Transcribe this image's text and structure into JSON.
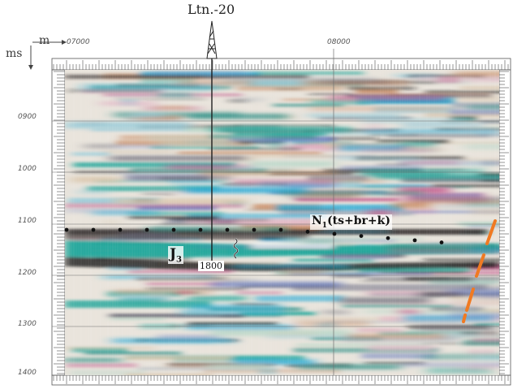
{
  "axis": {
    "distance_unit": "m",
    "time_unit": "ms",
    "trace_labels": [
      "07000",
      "08000"
    ],
    "time_labels": [
      "0900",
      "1000",
      "1100",
      "1200",
      "1300",
      "1400"
    ]
  },
  "well": {
    "name": "Ltn.-20",
    "depth_label": "1800"
  },
  "horizons": {
    "upper_label": "N",
    "upper_subscript": "1",
    "upper_suffix": "(ts+br+k)",
    "lower_label": "J",
    "lower_subscript": "3"
  },
  "colors": {
    "fault": "#f07a22",
    "trough": "#1a1a1a",
    "teal": "#1fa59a",
    "cyan": "#22a9d6",
    "magenta": "#c2558a",
    "grid": "#7a7a7a"
  },
  "icons": {
    "derrick": "derrick-icon",
    "log_curve": "log-curve-icon"
  }
}
